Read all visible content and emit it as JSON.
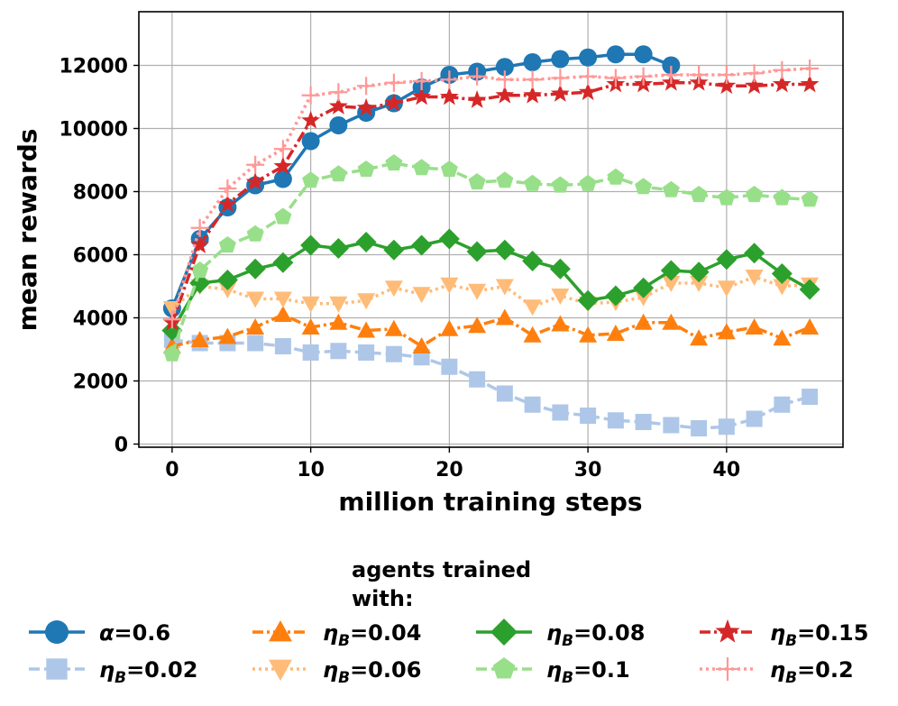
{
  "chart_data": {
    "type": "line",
    "xlabel": "million training steps",
    "ylabel": "mean rewards",
    "xlim": [
      -2.4,
      48.4
    ],
    "ylim": [
      -100,
      13700
    ],
    "xticks": [
      0,
      10,
      20,
      30,
      40
    ],
    "yticks": [
      0,
      2000,
      4000,
      6000,
      8000,
      10000,
      12000
    ],
    "grid": true,
    "legend": {
      "title_line1": "agents trained",
      "title_line2": "with:",
      "placement": "bottom-outside",
      "columns": 4
    },
    "series": [
      {
        "name": "α=0.6",
        "label_prefix": "α",
        "label_sub": "",
        "label_value": "=0.6",
        "color": "#1f77b4",
        "marker": "circle",
        "dash": "solid",
        "x": [
          0,
          2,
          4,
          6,
          8,
          10,
          12,
          14,
          16,
          18,
          20,
          22,
          24,
          26,
          28,
          30,
          32,
          34,
          36
        ],
        "y": [
          4300,
          6500,
          7500,
          8200,
          8400,
          9600,
          10100,
          10500,
          10800,
          11300,
          11700,
          11800,
          11950,
          12100,
          12200,
          12250,
          12350,
          12350,
          12000
        ]
      },
      {
        "name": "ηB=0.02",
        "label_prefix": "η",
        "label_sub": "B",
        "label_value": "=0.02",
        "color": "#aec7e8",
        "marker": "square",
        "dash": "dashed",
        "x": [
          0,
          2,
          4,
          6,
          8,
          10,
          12,
          14,
          16,
          18,
          20,
          22,
          24,
          26,
          28,
          30,
          32,
          34,
          36,
          38,
          40,
          42,
          44,
          46
        ],
        "y": [
          3300,
          3200,
          3200,
          3200,
          3100,
          2900,
          2950,
          2900,
          2850,
          2750,
          2450,
          2050,
          1600,
          1250,
          1000,
          900,
          750,
          700,
          600,
          500,
          550,
          800,
          1250,
          1500
        ]
      },
      {
        "name": "ηB=0.04",
        "label_prefix": "η",
        "label_sub": "B",
        "label_value": "=0.04",
        "color": "#ff7f0e",
        "marker": "triangle-up",
        "dash": "dashdot",
        "x": [
          0,
          2,
          4,
          6,
          8,
          10,
          12,
          14,
          16,
          18,
          20,
          22,
          24,
          26,
          28,
          30,
          32,
          34,
          36,
          38,
          40,
          42,
          44,
          46
        ],
        "y": [
          3100,
          3300,
          3400,
          3700,
          4100,
          3700,
          3850,
          3600,
          3650,
          3100,
          3650,
          3750,
          4000,
          3450,
          3800,
          3450,
          3500,
          3850,
          3850,
          3350,
          3550,
          3700,
          3350,
          3700
        ]
      },
      {
        "name": "ηB=0.06",
        "label_prefix": "η",
        "label_sub": "B",
        "label_value": "=0.06",
        "color": "#ffbb78",
        "marker": "triangle-down",
        "dash": "dotted",
        "x": [
          0,
          2,
          4,
          6,
          8,
          10,
          12,
          14,
          16,
          18,
          20,
          22,
          24,
          26,
          28,
          30,
          32,
          34,
          36,
          38,
          40,
          42,
          44,
          46
        ],
        "y": [
          4300,
          5000,
          4900,
          4600,
          4600,
          4450,
          4450,
          4550,
          4950,
          4750,
          5050,
          4850,
          5000,
          4350,
          4700,
          4450,
          4500,
          4650,
          5100,
          5100,
          4950,
          5300,
          5000,
          5050
        ]
      },
      {
        "name": "ηB=0.08",
        "label_prefix": "η",
        "label_sub": "B",
        "label_value": "=0.08",
        "color": "#2ca02c",
        "marker": "diamond",
        "dash": "solid",
        "x": [
          0,
          2,
          4,
          6,
          8,
          10,
          12,
          14,
          16,
          18,
          20,
          22,
          24,
          26,
          28,
          30,
          32,
          34,
          36,
          38,
          40,
          42,
          44,
          46
        ],
        "y": [
          3600,
          5100,
          5200,
          5550,
          5750,
          6300,
          6200,
          6400,
          6150,
          6300,
          6500,
          6100,
          6150,
          5800,
          5550,
          4550,
          4700,
          4950,
          5500,
          5450,
          5850,
          6050,
          5400,
          4900
        ]
      },
      {
        "name": "ηB=0.1",
        "label_prefix": "η",
        "label_sub": "B",
        "label_value": "=0.1",
        "color": "#98df8a",
        "marker": "pentagon",
        "dash": "dashed",
        "x": [
          0,
          2,
          4,
          6,
          8,
          10,
          12,
          14,
          16,
          18,
          20,
          22,
          24,
          26,
          28,
          30,
          32,
          34,
          36,
          38,
          40,
          42,
          44,
          46
        ],
        "y": [
          2850,
          5500,
          6300,
          6650,
          7200,
          8350,
          8550,
          8700,
          8900,
          8750,
          8700,
          8300,
          8350,
          8250,
          8200,
          8250,
          8450,
          8150,
          8050,
          7900,
          7800,
          7900,
          7800,
          7750
        ]
      },
      {
        "name": "ηB=0.15",
        "label_prefix": "η",
        "label_sub": "B",
        "label_value": "=0.15",
        "color": "#d62728",
        "marker": "star",
        "dash": "dashdot",
        "x": [
          0,
          2,
          4,
          6,
          8,
          10,
          12,
          14,
          16,
          18,
          20,
          22,
          24,
          26,
          28,
          30,
          32,
          34,
          36,
          38,
          40,
          42,
          44,
          46
        ],
        "y": [
          3850,
          6300,
          7600,
          8300,
          8800,
          10250,
          10700,
          10650,
          10800,
          11000,
          11000,
          10900,
          11050,
          11050,
          11100,
          11150,
          11400,
          11400,
          11450,
          11450,
          11350,
          11350,
          11400,
          11400
        ]
      },
      {
        "name": "ηB=0.2",
        "label_prefix": "η",
        "label_sub": "B",
        "label_value": "=0.2",
        "color": "#ff9896",
        "marker": "plus",
        "dash": "dotted",
        "x": [
          0,
          2,
          4,
          6,
          8,
          10,
          12,
          14,
          16,
          18,
          20,
          22,
          24,
          26,
          28,
          30,
          32,
          34,
          36,
          38,
          40,
          42,
          44,
          46
        ],
        "y": [
          3950,
          6850,
          8100,
          8850,
          9350,
          11050,
          11150,
          11350,
          11450,
          11500,
          11550,
          11650,
          11550,
          11550,
          11600,
          11650,
          11600,
          11650,
          11700,
          11700,
          11700,
          11750,
          11850,
          11900
        ]
      }
    ]
  }
}
